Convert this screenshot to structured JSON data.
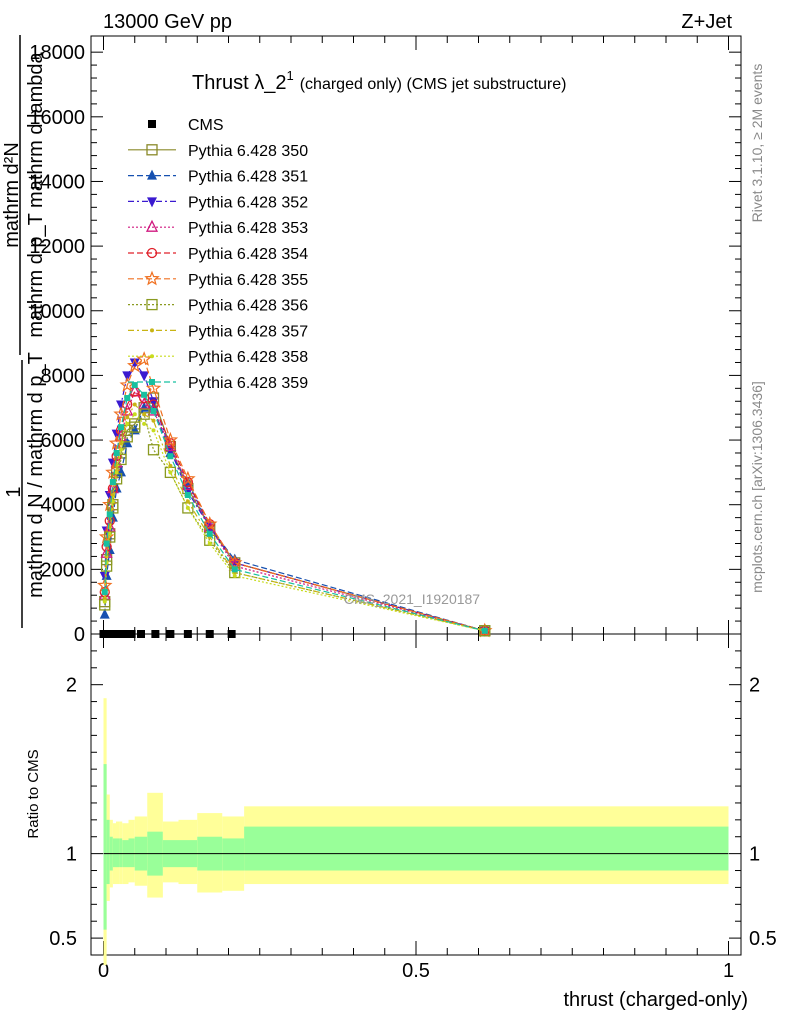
{
  "header": {
    "left": "13000 GeV pp",
    "right": "Z+Jet"
  },
  "side_labels": {
    "rivet": "Rivet 3.1.10, ≥ 2M events",
    "mcplots": "mcplots.cern.ch [arXiv:1306.3436]"
  },
  "watermark": "CMS_2021_I1920187",
  "chart_data": [
    {
      "type": "line",
      "title": "Thrust λ_2",
      "title_superscript": "1",
      "subtitle": "(charged only) (CMS jet substructure)",
      "ylabel_numerator": "mathrm d²N",
      "ylabel_denominator": "mathrm d p_T mathrm d lambda",
      "ylabel_prefix_num": "1",
      "ylabel_prefix_den": "mathrm d N / mathrm d p_T",
      "xlim": [
        -0.02,
        1.02
      ],
      "ylim": [
        0,
        18500
      ],
      "yticks": [
        0,
        2000,
        4000,
        6000,
        8000,
        10000,
        12000,
        14000,
        16000,
        18000
      ],
      "ytick_labels": [
        "0",
        "2000",
        "4000",
        "6000",
        "8000",
        "10000",
        "12000",
        "14000",
        "16000",
        "18000"
      ],
      "legend_position": "top-left",
      "series": [
        {
          "name": "CMS",
          "color": "#000000",
          "marker": "square-filled",
          "dash": "none",
          "x": [
            0.0,
            0.003,
            0.008,
            0.013,
            0.019,
            0.025,
            0.033,
            0.045,
            0.06,
            0.083,
            0.107,
            0.135,
            0.17,
            0.205
          ],
          "y": [
            0,
            0,
            0,
            0,
            0,
            0,
            0,
            0,
            0,
            0,
            0,
            0,
            0,
            0
          ]
        },
        {
          "name": "Pythia 6.428 350",
          "color": "#8a8a2a",
          "marker": "square-open",
          "dash": "solid",
          "x": [
            0.002,
            0.005,
            0.01,
            0.015,
            0.021,
            0.028,
            0.038,
            0.05,
            0.065,
            0.08,
            0.107,
            0.135,
            0.17,
            0.21,
            0.61
          ],
          "y": [
            1000,
            2300,
            3100,
            4000,
            5000,
            5600,
            6300,
            6500,
            7000,
            7300,
            5800,
            4500,
            3300,
            2200,
            100
          ]
        },
        {
          "name": "Pythia 6.428 351",
          "color": "#1650b0",
          "marker": "triangle-up-filled",
          "dash": "dashed",
          "x": [
            0.002,
            0.005,
            0.01,
            0.015,
            0.021,
            0.028,
            0.038,
            0.05,
            0.065,
            0.08,
            0.107,
            0.135,
            0.17,
            0.21,
            0.61
          ],
          "y": [
            600,
            1800,
            2600,
            3600,
            4500,
            5000,
            5900,
            6300,
            7000,
            7000,
            5600,
            4700,
            3300,
            2300,
            100
          ]
        },
        {
          "name": "Pythia 6.428 352",
          "color": "#3a1ad0",
          "marker": "triangle-down-filled",
          "dash": "dashdot",
          "x": [
            0.002,
            0.005,
            0.01,
            0.015,
            0.021,
            0.028,
            0.038,
            0.05,
            0.065,
            0.08,
            0.107,
            0.135,
            0.17,
            0.21,
            0.61
          ],
          "y": [
            1800,
            3200,
            4300,
            5300,
            6200,
            7100,
            8000,
            8400,
            8000,
            7200,
            5700,
            4400,
            3300,
            2200,
            100
          ]
        },
        {
          "name": "Pythia 6.428 353",
          "color": "#d01a80",
          "marker": "triangle-up-open",
          "dash": "dotted",
          "x": [
            0.002,
            0.005,
            0.01,
            0.015,
            0.021,
            0.028,
            0.038,
            0.05,
            0.065,
            0.08,
            0.107,
            0.135,
            0.17,
            0.21,
            0.61
          ],
          "y": [
            1200,
            2500,
            3300,
            4500,
            5300,
            6100,
            6900,
            7500,
            7100,
            6900,
            5800,
            4600,
            3300,
            2100,
            100
          ]
        },
        {
          "name": "Pythia 6.428 354",
          "color": "#e0202a",
          "marker": "circle-open",
          "dash": "dashed",
          "x": [
            0.002,
            0.005,
            0.01,
            0.015,
            0.021,
            0.028,
            0.038,
            0.05,
            0.065,
            0.08,
            0.107,
            0.135,
            0.17,
            0.21,
            0.61
          ],
          "y": [
            1300,
            2700,
            3500,
            4500,
            5500,
            6300,
            7100,
            7500,
            7300,
            7100,
            5900,
            4700,
            3400,
            2200,
            100
          ]
        },
        {
          "name": "Pythia 6.428 355",
          "color": "#f07020",
          "marker": "star-open",
          "dash": "dashed",
          "x": [
            0.002,
            0.005,
            0.01,
            0.015,
            0.021,
            0.028,
            0.038,
            0.05,
            0.065,
            0.08,
            0.107,
            0.135,
            0.17,
            0.21,
            0.61
          ],
          "y": [
            1500,
            3000,
            4000,
            5000,
            5900,
            6800,
            7700,
            8300,
            8500,
            7600,
            6000,
            4800,
            3400,
            2200,
            100
          ]
        },
        {
          "name": "Pythia 6.428 356",
          "color": "#8a9a20",
          "marker": "square-open",
          "dash": "dotted",
          "x": [
            0.002,
            0.005,
            0.01,
            0.015,
            0.021,
            0.028,
            0.038,
            0.05,
            0.065,
            0.08,
            0.107,
            0.135,
            0.17,
            0.21,
            0.61
          ],
          "y": [
            900,
            2100,
            3000,
            3900,
            4800,
            5400,
            6100,
            6400,
            6800,
            5700,
            5000,
            3900,
            2900,
            1900,
            100
          ]
        },
        {
          "name": "Pythia 6.428 357",
          "color": "#c8b414",
          "marker": "dot",
          "dash": "dashdot",
          "x": [
            0.002,
            0.005,
            0.01,
            0.015,
            0.021,
            0.028,
            0.038,
            0.05,
            0.065,
            0.08,
            0.107,
            0.135,
            0.17,
            0.21,
            0.61
          ],
          "y": [
            1100,
            2400,
            3300,
            4300,
            5200,
            5900,
            6700,
            7100,
            6800,
            6600,
            5200,
            4100,
            3000,
            1900,
            100
          ]
        },
        {
          "name": "Pythia 6.428 358",
          "color": "#c8dc1e",
          "marker": "dot",
          "dash": "dotted",
          "x": [
            0.002,
            0.005,
            0.01,
            0.015,
            0.021,
            0.028,
            0.038,
            0.05,
            0.065,
            0.08,
            0.107,
            0.135,
            0.17,
            0.21,
            0.61
          ],
          "y": [
            1000,
            2200,
            3100,
            4100,
            5000,
            5700,
            6500,
            6800,
            6500,
            6300,
            5000,
            3900,
            2800,
            1800,
            100
          ]
        },
        {
          "name": "Pythia 6.428 359",
          "color": "#18c0a0",
          "marker": "square-filled-small",
          "dash": "dashed",
          "x": [
            0.002,
            0.005,
            0.01,
            0.015,
            0.021,
            0.028,
            0.038,
            0.05,
            0.065,
            0.08,
            0.107,
            0.135,
            0.17,
            0.21,
            0.61
          ],
          "y": [
            1300,
            2800,
            3700,
            4700,
            5600,
            6400,
            7300,
            7700,
            7400,
            6900,
            5500,
            4300,
            3100,
            2000,
            100
          ]
        }
      ]
    },
    {
      "type": "area",
      "ylabel": "Ratio to CMS",
      "xlabel": "thrust (charged-only)",
      "xlim": [
        -0.02,
        1.02
      ],
      "ylim": [
        0.4,
        2.3
      ],
      "xticks": [
        0,
        0.5,
        1
      ],
      "xtick_labels": [
        "0",
        "0.5",
        "1"
      ],
      "yticks": [
        0.5,
        1,
        2
      ],
      "ytick_labels": [
        "0.5",
        "1",
        "2"
      ],
      "reference_line": 1,
      "bands": {
        "bin_edges": [
          0.0,
          0.005,
          0.01,
          0.015,
          0.02,
          0.025,
          0.03,
          0.04,
          0.05,
          0.07,
          0.095,
          0.12,
          0.15,
          0.19,
          0.225,
          1.0
        ],
        "outer_lower": [
          0.34,
          0.72,
          0.8,
          0.82,
          0.82,
          0.82,
          0.82,
          0.83,
          0.81,
          0.74,
          0.83,
          0.82,
          0.77,
          0.78,
          0.82
        ],
        "outer_upper": [
          1.92,
          1.35,
          1.2,
          1.18,
          1.19,
          1.19,
          1.18,
          1.2,
          1.22,
          1.36,
          1.19,
          1.2,
          1.24,
          1.22,
          1.28
        ],
        "inner_lower": [
          0.55,
          0.82,
          0.9,
          0.92,
          0.92,
          0.92,
          0.92,
          0.92,
          0.9,
          0.87,
          0.92,
          0.92,
          0.9,
          0.9,
          0.9
        ],
        "inner_upper": [
          1.53,
          1.2,
          1.1,
          1.09,
          1.09,
          1.09,
          1.08,
          1.09,
          1.1,
          1.13,
          1.08,
          1.08,
          1.1,
          1.09,
          1.16
        ],
        "outer_color": "#ffff99",
        "inner_color": "#99ff99"
      }
    }
  ]
}
